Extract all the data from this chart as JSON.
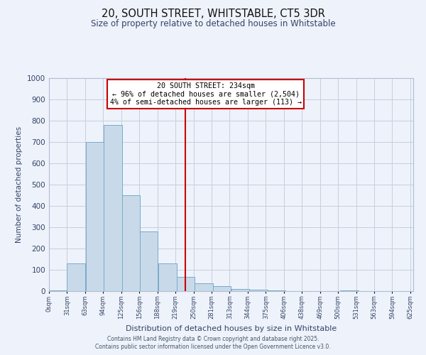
{
  "title": "20, SOUTH STREET, WHITSTABLE, CT5 3DR",
  "subtitle": "Size of property relative to detached houses in Whitstable",
  "xlabel": "Distribution of detached houses by size in Whitstable",
  "ylabel": "Number of detached properties",
  "bar_left_edges": [
    0,
    31,
    63,
    94,
    125,
    156,
    188,
    219,
    250,
    281,
    313,
    344,
    375,
    406,
    438,
    469,
    500,
    531,
    563,
    594
  ],
  "bar_heights": [
    5,
    130,
    700,
    780,
    450,
    280,
    130,
    68,
    38,
    22,
    10,
    8,
    5,
    0,
    0,
    0,
    5,
    0,
    0,
    0
  ],
  "bin_width": 31,
  "tick_labels": [
    "0sqm",
    "31sqm",
    "63sqm",
    "94sqm",
    "125sqm",
    "156sqm",
    "188sqm",
    "219sqm",
    "250sqm",
    "281sqm",
    "313sqm",
    "344sqm",
    "375sqm",
    "406sqm",
    "438sqm",
    "469sqm",
    "500sqm",
    "531sqm",
    "563sqm",
    "594sqm",
    "625sqm"
  ],
  "vline_x": 234,
  "bar_fill_color": "#c8daea",
  "bar_edge_color": "#7aaac8",
  "vline_color": "#cc0000",
  "background_color": "#eef2fa",
  "grid_color": "#c5cfe0",
  "annotation_title": "20 SOUTH STREET: 234sqm",
  "annotation_line1": "← 96% of detached houses are smaller (2,504)",
  "annotation_line2": "4% of semi-detached houses are larger (113) →",
  "annotation_box_color": "#ffffff",
  "annotation_border_color": "#cc0000",
  "ylim": [
    0,
    1000
  ],
  "title_fontsize": 10.5,
  "subtitle_fontsize": 8.5,
  "footnote1": "Contains HM Land Registry data © Crown copyright and database right 2025.",
  "footnote2": "Contains public sector information licensed under the Open Government Licence v3.0."
}
